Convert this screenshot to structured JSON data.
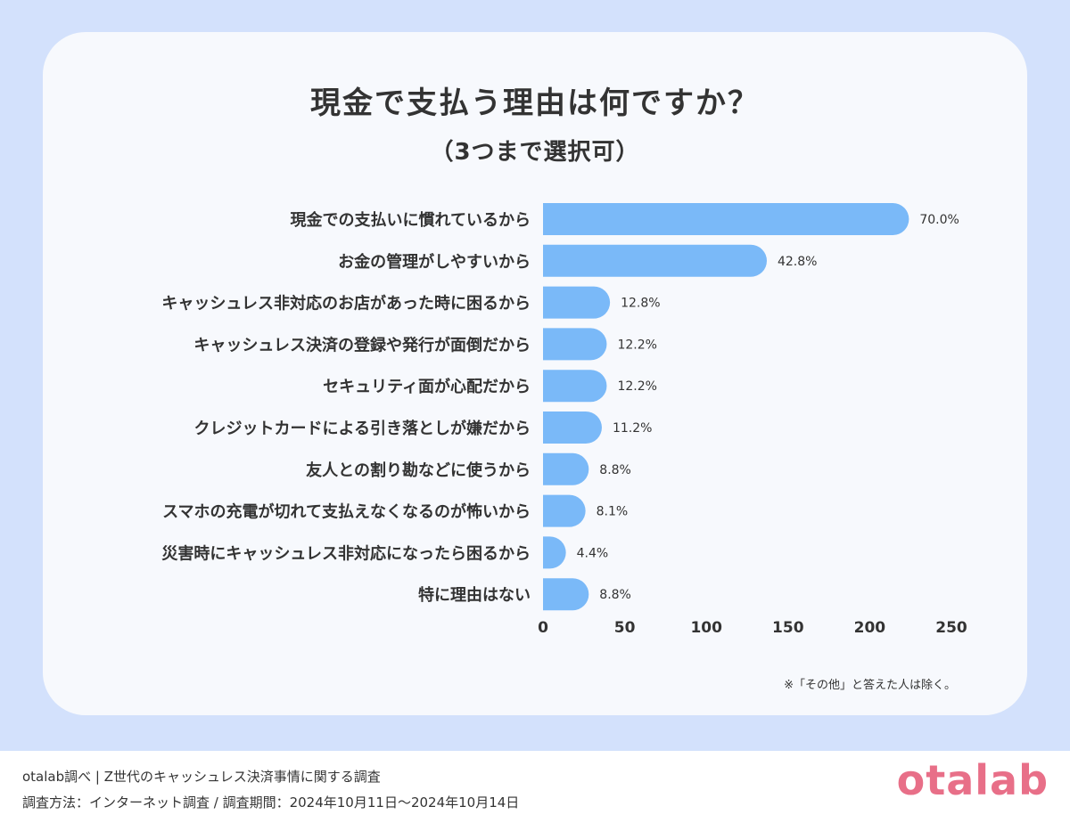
{
  "title": "現金で支払う理由は何ですか？",
  "subtitle": "（3つまで選択可）",
  "footnote": "※「その他」と答えた人は除く。",
  "footer": {
    "line1": "otalab調べ | Z世代のキャッシュレス決済事情に関する調査",
    "line2": "調査方法：インターネット調査 / 調査期間：2024年10月11日～2024年10月14日",
    "logo": "otalab"
  },
  "colors": {
    "bar": "#7ab9f8",
    "background": "#d3e1fc",
    "card": "#f7f9fd",
    "logo": "#e86f88",
    "text": "#333333"
  },
  "chart_data": {
    "type": "bar",
    "orientation": "horizontal",
    "categories": [
      "現金での支払いに慣れているから",
      "お金の管理がしやすいから",
      "キャッシュレス非対応のお店があった時に困るから",
      "キャッシュレス決済の登録や発行が面倒だから",
      "セキュリティ面が心配だから",
      "クレジットカードによる引き落としが嫌だから",
      "友人との割り勘などに使うから",
      "スマホの充電が切れて支払えなくなるのが怖いから",
      "災害時にキャッシュレス非対応になったら困るから",
      "特に理由はない"
    ],
    "values": [
      224,
      137,
      41,
      39,
      39,
      36,
      28,
      26,
      14,
      28
    ],
    "data_labels": [
      "70.0%",
      "42.8%",
      "12.8%",
      "12.2%",
      "12.2%",
      "11.2%",
      "8.8%",
      "8.1%",
      "4.4%",
      "8.8%"
    ],
    "xlim": [
      0,
      250
    ],
    "xticks": [
      "0",
      "50",
      "100",
      "150",
      "200",
      "250"
    ],
    "grid": false,
    "legend": "none"
  }
}
